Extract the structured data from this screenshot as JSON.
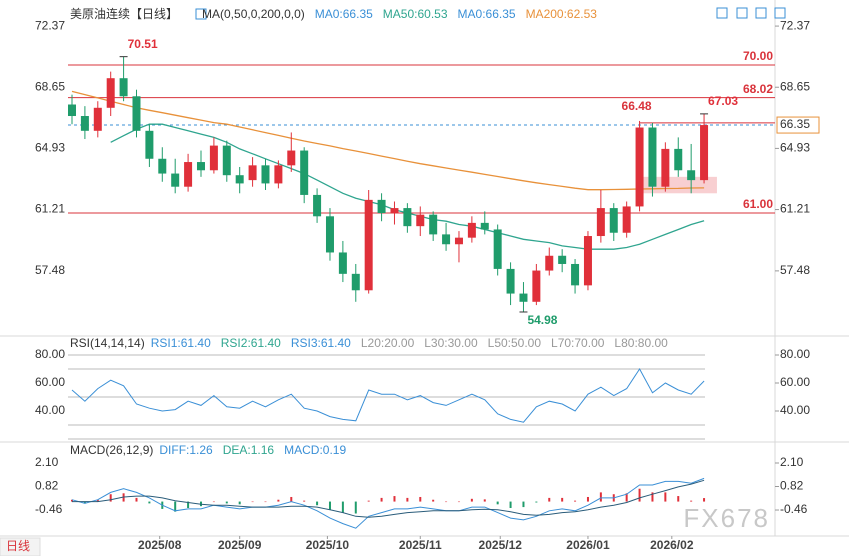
{
  "chart_data": [
    {
      "type": "candlestick",
      "title": "美原油连续【日线】",
      "legend": [
        {
          "text": "MA(0,50,0,200,0,0)",
          "color": "#333333"
        },
        {
          "text": "MA0:66.35",
          "color": "#3a8fd6"
        },
        {
          "text": "MA50:60.53",
          "color": "#2fa58f"
        },
        {
          "text": "MA0:66.35",
          "color": "#3a8fd6"
        },
        {
          "text": "MA200:62.53",
          "color": "#e8913a"
        }
      ],
      "xlim": [
        -0.31,
        54.5
      ],
      "xticks": [
        {
          "value": 6.8,
          "label": "2025/08"
        },
        {
          "value": 13.0,
          "label": "2025/09"
        },
        {
          "value": 19.8,
          "label": "2025/10"
        },
        {
          "value": 27.0,
          "label": "2025/11"
        },
        {
          "value": 33.2,
          "label": "2025/12"
        },
        {
          "value": 40.0,
          "label": "2026/01"
        },
        {
          "value": 46.5,
          "label": "2026/02"
        }
      ],
      "ylim": [
        53.58,
        73.47
      ],
      "yticks": [
        72.37,
        68.65,
        64.93,
        61.21,
        57.48
      ],
      "up_color": "#e0303a",
      "down_color": "#1f9c6b",
      "open": [
        67.6,
        66.9,
        66.0,
        67.4,
        69.2,
        68.1,
        66.0,
        64.3,
        63.4,
        62.6,
        64.1,
        63.6,
        65.1,
        63.3,
        63.0,
        63.9,
        62.8,
        63.9,
        64.8,
        62.1,
        60.8,
        58.6,
        57.3,
        56.3,
        61.8,
        61.0,
        61.3,
        60.2,
        60.9,
        59.7,
        59.1,
        59.5,
        60.4,
        60.0,
        57.6,
        56.1,
        55.6,
        57.5,
        58.4,
        57.9,
        56.6,
        59.6,
        61.3,
        59.8,
        61.4,
        66.2,
        62.6,
        64.9,
        63.6,
        63.0
      ],
      "high": [
        68.2,
        67.5,
        67.8,
        69.6,
        70.51,
        68.5,
        66.4,
        65.0,
        64.3,
        64.6,
        64.8,
        65.6,
        65.4,
        63.8,
        64.4,
        64.3,
        64.2,
        65.9,
        65.0,
        62.5,
        61.3,
        59.3,
        57.9,
        62.4,
        62.2,
        61.7,
        61.6,
        61.4,
        61.1,
        60.4,
        59.9,
        60.8,
        61.1,
        60.3,
        58.0,
        56.8,
        57.9,
        58.9,
        58.8,
        58.2,
        59.9,
        62.4,
        61.6,
        61.7,
        66.6,
        66.48,
        65.3,
        65.6,
        65.2,
        67.03
      ],
      "low": [
        66.4,
        65.5,
        65.6,
        66.9,
        67.8,
        65.6,
        63.8,
        62.9,
        62.2,
        62.3,
        63.2,
        63.4,
        62.9,
        62.2,
        62.6,
        62.4,
        62.5,
        63.5,
        61.6,
        60.4,
        58.1,
        56.8,
        55.6,
        56.1,
        60.5,
        60.3,
        59.8,
        59.6,
        59.3,
        58.7,
        58.0,
        59.2,
        59.7,
        57.2,
        55.4,
        54.98,
        55.4,
        57.2,
        57.4,
        56.1,
        56.3,
        59.2,
        59.3,
        59.5,
        61.1,
        62.0,
        62.3,
        63.2,
        62.2,
        62.8
      ],
      "close": [
        66.9,
        66.0,
        67.4,
        69.2,
        68.1,
        66.0,
        64.3,
        63.4,
        62.6,
        64.1,
        63.6,
        65.1,
        63.3,
        62.8,
        63.9,
        62.8,
        63.9,
        64.8,
        62.1,
        60.8,
        58.6,
        57.3,
        56.3,
        61.8,
        61.0,
        61.3,
        60.2,
        60.9,
        59.7,
        59.1,
        59.5,
        60.4,
        60.0,
        57.6,
        56.1,
        55.6,
        57.5,
        58.4,
        57.9,
        56.6,
        59.6,
        61.3,
        59.8,
        61.4,
        66.2,
        62.6,
        64.9,
        63.6,
        63.0,
        66.35
      ],
      "series": [
        {
          "color": "#2fa58f",
          "values": [
            null,
            null,
            null,
            65.3,
            65.7,
            66.1,
            66.4,
            66.4,
            66.2,
            66.0,
            65.8,
            65.6,
            65.3,
            64.9,
            64.6,
            64.3,
            64.0,
            63.7,
            63.4,
            63.0,
            62.6,
            62.2,
            61.9,
            61.7,
            61.5,
            61.2,
            61.0,
            60.8,
            60.6,
            60.5,
            60.3,
            60.2,
            60.0,
            59.8,
            59.6,
            59.4,
            59.3,
            59.2,
            59.0,
            58.9,
            58.8,
            58.8,
            58.8,
            58.9,
            59.1,
            59.4,
            59.7,
            60.0,
            60.3,
            60.53
          ]
        },
        {
          "color": "#e8913a",
          "values": [
            68.4,
            68.2,
            68.0,
            67.8,
            67.6,
            67.4,
            67.25,
            67.1,
            66.95,
            66.8,
            66.65,
            66.5,
            66.4,
            66.23,
            66.06,
            65.89,
            65.72,
            65.55,
            65.38,
            65.23,
            65.08,
            64.92,
            64.77,
            64.62,
            64.46,
            64.31,
            64.15,
            64.0,
            63.87,
            63.74,
            63.61,
            63.48,
            63.35,
            63.22,
            63.09,
            62.96,
            62.84,
            62.73,
            62.62,
            62.51,
            62.42,
            62.42,
            62.43,
            62.44,
            62.46,
            62.47,
            62.49,
            62.5,
            62.52,
            62.53
          ]
        }
      ],
      "levels": [
        {
          "value": 70,
          "label": "70.00"
        },
        {
          "value": 68.02,
          "label": "68.02"
        },
        {
          "value": 61,
          "label": "61.00"
        },
        {
          "value": 66.48,
          "label": "66.48",
          "from": 44
        }
      ],
      "level_color": "#d9333b",
      "zone": {
        "from": 44,
        "to": 50,
        "low": 62.2,
        "high": 63.2
      },
      "annotations": [
        {
          "at": 4,
          "value": 70.51
        },
        {
          "at": 35,
          "value": 54.98
        },
        {
          "at": 49,
          "value": 67.03
        }
      ],
      "last": 66.35
    },
    {
      "type": "line",
      "title": "RSI(14,14,14)",
      "legend": [
        {
          "text": "RSI1:61.40",
          "color": "#3a8fd6"
        },
        {
          "text": "RSI2:61.40",
          "color": "#2fa58f"
        },
        {
          "text": "RSI3:61.40",
          "color": "#3a8fd6"
        },
        {
          "text": "L20:20.00",
          "color": "#999999"
        },
        {
          "text": "L30:30.00",
          "color": "#999999"
        },
        {
          "text": "L50:50.00",
          "color": "#999999"
        },
        {
          "text": "L70:70.00",
          "color": "#999999"
        },
        {
          "text": "L80:80.00",
          "color": "#999999"
        }
      ],
      "ylim": [
        18.57,
        92.14
      ],
      "yticks": [
        {
          "value": 80,
          "label": "80.00"
        },
        {
          "value": 60,
          "label": "60.00"
        },
        {
          "value": 40,
          "label": "40.00"
        }
      ],
      "levels": [
        20,
        30,
        50,
        70,
        80
      ],
      "series": [
        {
          "color": "#3a8fd6",
          "values": [
            55,
            47,
            56,
            62,
            58,
            45,
            42,
            40,
            41,
            47,
            44,
            51,
            43,
            42,
            47,
            43,
            48,
            52,
            42,
            40,
            36,
            34,
            33,
            55,
            52,
            52,
            48,
            51,
            46,
            44,
            48,
            52,
            48,
            38,
            34,
            32,
            43,
            47,
            45,
            40,
            52,
            57,
            51,
            56,
            70,
            53,
            60,
            55,
            52,
            61.4
          ]
        }
      ]
    },
    {
      "type": "macd",
      "title": "MACD(26,12,9)",
      "legend": [
        {
          "text": "DIFF:1.26",
          "color": "#3a8fd6"
        },
        {
          "text": "DEA:1.16",
          "color": "#2fa58f"
        },
        {
          "text": "MACD:0.19",
          "color": "#3a8fd6"
        }
      ],
      "ylim": [
        -1.82,
        3.08
      ],
      "yticks": [
        {
          "value": 2.1,
          "label": "2.10"
        },
        0.82,
        -0.46
      ],
      "series": [
        {
          "color": "#3a8fd6",
          "values": [
            0.1,
            -0.1,
            0.1,
            0.5,
            0.7,
            0.5,
            0.2,
            -0.2,
            -0.5,
            -0.4,
            -0.4,
            -0.2,
            -0.3,
            -0.4,
            -0.3,
            -0.3,
            -0.2,
            0.0,
            -0.2,
            -0.5,
            -0.9,
            -1.2,
            -1.45,
            -0.8,
            -0.6,
            -0.4,
            -0.4,
            -0.3,
            -0.4,
            -0.5,
            -0.5,
            -0.3,
            -0.3,
            -0.6,
            -0.9,
            -1.0,
            -0.8,
            -0.5,
            -0.4,
            -0.5,
            -0.2,
            0.2,
            0.2,
            0.4,
            0.9,
            0.9,
            1.1,
            1.1,
            1.0,
            1.26
          ]
        },
        {
          "color": "#2a5c7a",
          "values": [
            0.0,
            0.0,
            0.0,
            0.1,
            0.25,
            0.3,
            0.3,
            0.2,
            0.05,
            -0.05,
            -0.15,
            -0.2,
            -0.2,
            -0.25,
            -0.3,
            -0.3,
            -0.3,
            -0.25,
            -0.25,
            -0.3,
            -0.45,
            -0.6,
            -0.8,
            -0.85,
            -0.8,
            -0.7,
            -0.6,
            -0.55,
            -0.5,
            -0.5,
            -0.5,
            -0.45,
            -0.42,
            -0.45,
            -0.55,
            -0.7,
            -0.75,
            -0.7,
            -0.6,
            -0.55,
            -0.45,
            -0.3,
            -0.2,
            -0.05,
            0.2,
            0.4,
            0.6,
            0.8,
            0.95,
            1.16
          ]
        }
      ],
      "bars": [
        0.1,
        -0.1,
        0.1,
        0.4,
        0.45,
        0.2,
        -0.1,
        -0.4,
        -0.55,
        -0.35,
        -0.25,
        0,
        -0.1,
        -0.15,
        0,
        0,
        0.1,
        0.25,
        0.05,
        -0.2,
        -0.45,
        -0.6,
        -0.65,
        0.05,
        0.2,
        0.3,
        0.2,
        0.25,
        0.1,
        0,
        0,
        0.15,
        0.12,
        -0.15,
        -0.35,
        -0.3,
        -0.05,
        0.2,
        0.2,
        0.05,
        0.25,
        0.5,
        0.4,
        0.45,
        0.7,
        0.5,
        0.5,
        0.3,
        0.05,
        0.19
      ],
      "up_color": "#e0303a",
      "down_color": "#1f9c6b"
    }
  ],
  "tab": "日线",
  "watermark": "FX678"
}
